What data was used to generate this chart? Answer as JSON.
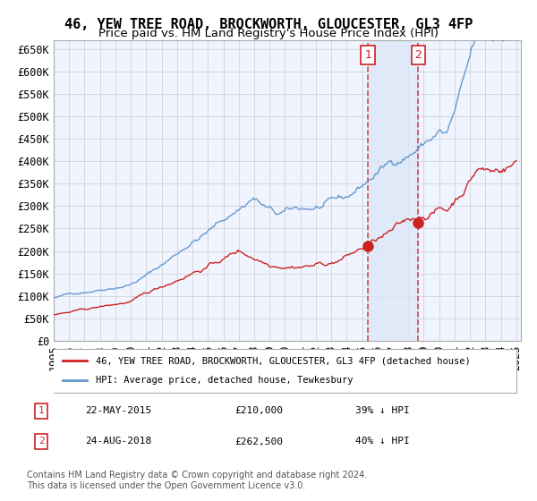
{
  "title": "46, YEW TREE ROAD, BROCKWORTH, GLOUCESTER, GL3 4FP",
  "subtitle": "Price paid vs. HM Land Registry's House Price Index (HPI)",
  "xlabel": "",
  "ylabel": "",
  "ylim": [
    0,
    670000
  ],
  "xlim_start": 1995.0,
  "xlim_end": 2025.3,
  "yticks": [
    0,
    50000,
    100000,
    150000,
    200000,
    250000,
    300000,
    350000,
    400000,
    450000,
    500000,
    550000,
    600000,
    650000
  ],
  "ytick_labels": [
    "£0",
    "£50K",
    "£100K",
    "£150K",
    "£200K",
    "£250K",
    "£300K",
    "£350K",
    "£400K",
    "£450K",
    "£500K",
    "£550K",
    "£600K",
    "£650K"
  ],
  "background_color": "#ffffff",
  "plot_bg_color": "#f0f4ff",
  "grid_color": "#cccccc",
  "hpi_color": "#6699cc",
  "price_color": "#cc2222",
  "highlight_fill": "#dde8f8",
  "sale1_date_num": 2015.385,
  "sale1_price": 210000,
  "sale1_label": "1",
  "sale2_date_num": 2018.645,
  "sale2_price": 262500,
  "sale2_label": "2",
  "legend_line1": "46, YEW TREE ROAD, BROCKWORTH, GLOUCESTER, GL3 4FP (detached house)",
  "legend_line2": "HPI: Average price, detached house, Tewkesbury",
  "table_row1": [
    "1",
    "22-MAY-2015",
    "£210,000",
    "39% ↓ HPI"
  ],
  "table_row2": [
    "2",
    "24-AUG-2018",
    "£262,500",
    "40% ↓ HPI"
  ],
  "footer": "Contains HM Land Registry data © Crown copyright and database right 2024.\nThis data is licensed under the Open Government Licence v3.0.",
  "title_fontsize": 11,
  "subtitle_fontsize": 9.5,
  "tick_fontsize": 8.5,
  "legend_fontsize": 8.5
}
